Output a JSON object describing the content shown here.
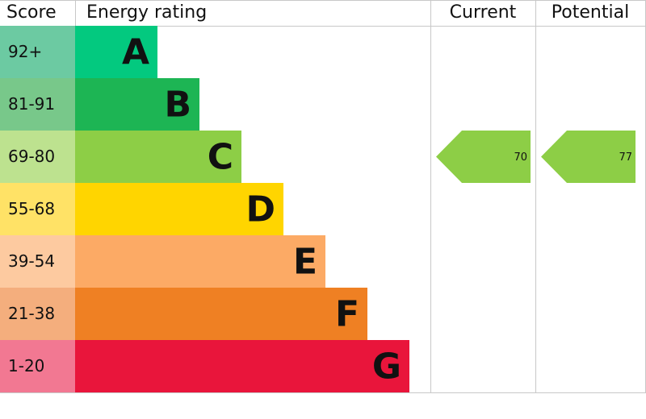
{
  "chart_data": {
    "type": "epc",
    "headers": {
      "score": "Score",
      "rating": "Energy rating",
      "current": "Current",
      "potential": "Potential"
    },
    "bands": [
      {
        "score": "92+",
        "letter": "A",
        "color": "#03c97f",
        "score_color": "#6ccaa2"
      },
      {
        "score": "81-91",
        "letter": "B",
        "color": "#1db554",
        "score_color": "#78c88a"
      },
      {
        "score": "69-80",
        "letter": "C",
        "color": "#8dce46",
        "score_color": "#bde28f"
      },
      {
        "score": "55-68",
        "letter": "D",
        "color": "#ffd500",
        "score_color": "#ffe266"
      },
      {
        "score": "39-54",
        "letter": "E",
        "color": "#fcaa65",
        "score_color": "#fdcaa0"
      },
      {
        "score": "21-38",
        "letter": "F",
        "color": "#ef8023",
        "score_color": "#f4ae7d"
      },
      {
        "score": "1-20",
        "letter": "G",
        "color": "#e9153b",
        "score_color": "#f27892"
      }
    ],
    "current": {
      "value": 70,
      "color": "#8dce46"
    },
    "potential": {
      "value": 77,
      "color": "#8dce46"
    }
  }
}
